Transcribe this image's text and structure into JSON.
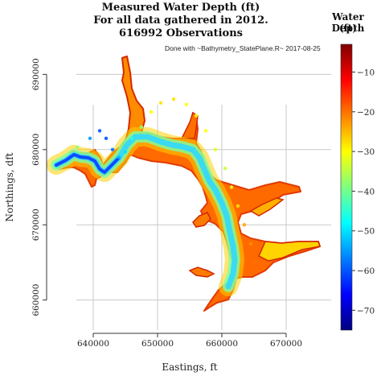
{
  "chart_data": {
    "type": "scatter",
    "title": [
      "Measured Water Depth (ft)",
      "For all data gathered in 2012.",
      "616992 Observations"
    ],
    "annotation": "Done with ~Bathymetry_StatePlane.R~ 2017-08-25",
    "xlabel": "Eastings, ft",
    "ylabel": "Northings, dft",
    "xlim": [
      633000,
      677000
    ],
    "ylim": [
      656000,
      694000
    ],
    "xticks": [
      640000,
      650000,
      660000,
      670000
    ],
    "yticks": [
      660000,
      670000,
      680000,
      690000
    ],
    "grid": true,
    "colorbar": {
      "title": [
        "Water Depth",
        "(ft)"
      ],
      "range": [
        -75,
        -3
      ],
      "ticks": [
        -10,
        -20,
        -30,
        -40,
        -50,
        -60,
        -70
      ],
      "colors": [
        "#00007f",
        "#0000ff",
        "#007fff",
        "#00ffff",
        "#7fff7f",
        "#ffff00",
        "#ff7f00",
        "#ff0000",
        "#7f0000"
      ]
    },
    "series": [
      {
        "type": "reservoir-path",
        "points": [
          {
            "x": 637500,
            "y": 680300,
            "depth": -38
          },
          {
            "x": 639500,
            "y": 681500,
            "depth": -55
          },
          {
            "x": 641000,
            "y": 682500,
            "depth": -60
          },
          {
            "x": 642000,
            "y": 681500,
            "depth": -60
          },
          {
            "x": 643000,
            "y": 680000,
            "depth": -58
          },
          {
            "x": 644000,
            "y": 679000,
            "depth": -52
          },
          {
            "x": 645000,
            "y": 679700,
            "depth": -50
          },
          {
            "x": 646000,
            "y": 681500,
            "depth": -45
          },
          {
            "x": 647500,
            "y": 683000,
            "depth": -38
          },
          {
            "x": 649000,
            "y": 685000,
            "depth": -30
          },
          {
            "x": 650500,
            "y": 686200,
            "depth": -28
          },
          {
            "x": 652500,
            "y": 686700,
            "depth": -28
          },
          {
            "x": 654500,
            "y": 686000,
            "depth": -30
          },
          {
            "x": 656000,
            "y": 684500,
            "depth": -30
          },
          {
            "x": 657500,
            "y": 682500,
            "depth": -30
          },
          {
            "x": 659000,
            "y": 680000,
            "depth": -32
          },
          {
            "x": 660500,
            "y": 677500,
            "depth": -34
          },
          {
            "x": 661500,
            "y": 675000,
            "depth": -32
          },
          {
            "x": 662500,
            "y": 672500,
            "depth": -28
          },
          {
            "x": 663500,
            "y": 670000,
            "depth": -24
          },
          {
            "x": 664500,
            "y": 667500,
            "depth": -22
          },
          {
            "x": 665000,
            "y": 665000,
            "depth": -20
          }
        ]
      }
    ]
  }
}
